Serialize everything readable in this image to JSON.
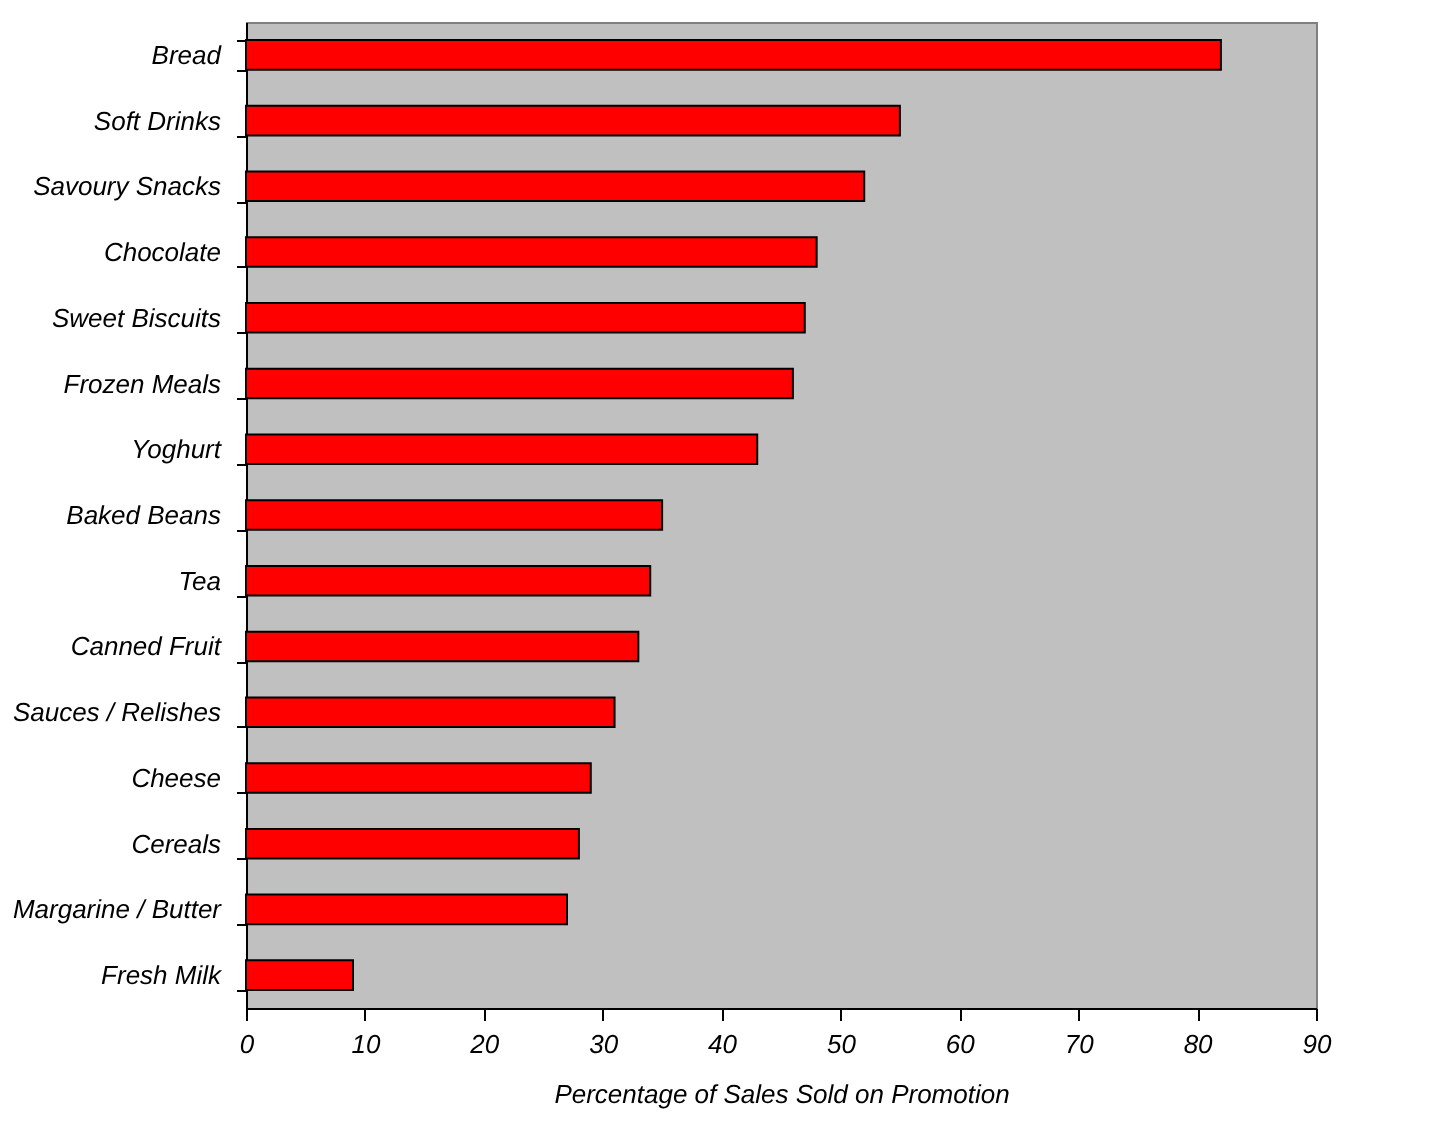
{
  "chart_data": {
    "type": "bar",
    "orientation": "horizontal",
    "categories": [
      "Bread",
      "Soft Drinks",
      "Savoury Snacks",
      "Chocolate",
      "Sweet Biscuits",
      "Frozen Meals",
      "Yoghurt",
      "Baked Beans",
      "Tea",
      "Canned Fruit",
      "Sauces / Relishes",
      "Cheese",
      "Cereals",
      "Margarine / Butter",
      "Fresh Milk"
    ],
    "values": [
      82,
      55,
      52,
      48,
      47,
      46,
      43,
      35,
      34,
      33,
      31,
      29,
      28,
      27,
      9
    ],
    "color": "#ff0000",
    "xlabel": "Percentage of Sales Sold on Promotion",
    "xlim": [
      0,
      90
    ],
    "xticks": [
      0,
      10,
      20,
      30,
      40,
      50,
      60,
      70,
      80,
      90
    ],
    "grid": false
  }
}
